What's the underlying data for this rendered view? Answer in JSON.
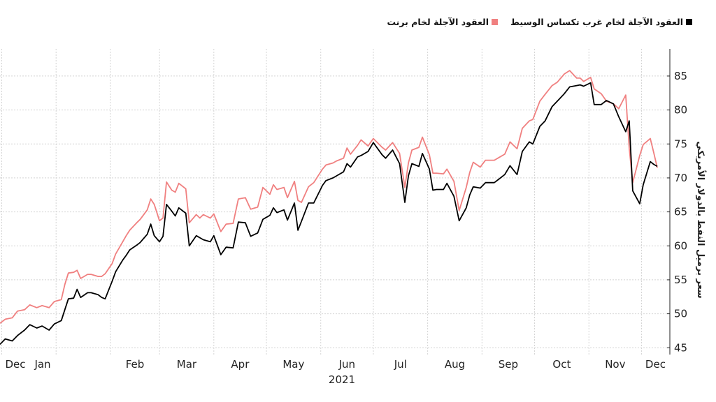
{
  "chart_data": {
    "type": "line",
    "title": "",
    "xlabel": "2021",
    "ylabel": "سعر برميل النفط بالدولار الأمريكي",
    "ylim": [
      44,
      89
    ],
    "y_ticks": [
      45,
      50,
      55,
      60,
      65,
      70,
      75,
      80,
      85
    ],
    "x_tick_labels": [
      "Dec",
      "Jan",
      "Feb",
      "Mar",
      "Apr",
      "May",
      "Jun",
      "Jul",
      "Aug",
      "Sep",
      "Oct",
      "Nov",
      "Dec"
    ],
    "x_ticks": [
      "2020-12-01",
      "2021-01-01",
      "2021-02-01",
      "2021-03-01",
      "2021-04-01",
      "2021-05-01",
      "2021-06-01",
      "2021-07-01",
      "2021-08-01",
      "2021-09-01",
      "2021-10-01",
      "2021-11-01",
      "2021-12-01"
    ],
    "x_range": [
      "2020-11-30",
      "2021-12-10"
    ],
    "year_label": "2021",
    "grid": true,
    "legend_position": "top-right",
    "series": [
      {
        "name": "العقود الآجلة لخام غرب تكساس الوسيط",
        "color": "#000000",
        "x": [
          "2020-11-30",
          "2020-12-03",
          "2020-12-07",
          "2020-12-10",
          "2020-12-14",
          "2020-12-17",
          "2020-12-21",
          "2020-12-24",
          "2020-12-28",
          "2020-12-31",
          "2021-01-04",
          "2021-01-06",
          "2021-01-08",
          "2021-01-11",
          "2021-01-13",
          "2021-01-15",
          "2021-01-19",
          "2021-01-21",
          "2021-01-25",
          "2021-01-27",
          "2021-01-29",
          "2021-02-02",
          "2021-02-04",
          "2021-02-08",
          "2021-02-10",
          "2021-02-12",
          "2021-02-16",
          "2021-02-18",
          "2021-02-22",
          "2021-02-24",
          "2021-02-26",
          "2021-03-01",
          "2021-03-03",
          "2021-03-05",
          "2021-03-08",
          "2021-03-10",
          "2021-03-12",
          "2021-03-16",
          "2021-03-18",
          "2021-03-22",
          "2021-03-24",
          "2021-03-26",
          "2021-03-30",
          "2021-04-01",
          "2021-04-05",
          "2021-04-08",
          "2021-04-12",
          "2021-04-15",
          "2021-04-19",
          "2021-04-22",
          "2021-04-26",
          "2021-04-29",
          "2021-05-03",
          "2021-05-05",
          "2021-05-07",
          "2021-05-11",
          "2021-05-13",
          "2021-05-17",
          "2021-05-19",
          "2021-05-21",
          "2021-05-25",
          "2021-05-28",
          "2021-06-02",
          "2021-06-04",
          "2021-06-08",
          "2021-06-10",
          "2021-06-14",
          "2021-06-16",
          "2021-06-18",
          "2021-06-22",
          "2021-06-24",
          "2021-06-28",
          "2021-07-01",
          "2021-07-06",
          "2021-07-08",
          "2021-07-12",
          "2021-07-14",
          "2021-07-16",
          "2021-07-19",
          "2021-07-21",
          "2021-07-23",
          "2021-07-27",
          "2021-07-29",
          "2021-08-02",
          "2021-08-04",
          "2021-08-06",
          "2021-08-10",
          "2021-08-12",
          "2021-08-16",
          "2021-08-19",
          "2021-08-23",
          "2021-08-25",
          "2021-08-27",
          "2021-08-31",
          "2021-09-03",
          "2021-09-08",
          "2021-09-10",
          "2021-09-14",
          "2021-09-17",
          "2021-09-21",
          "2021-09-24",
          "2021-09-28",
          "2021-09-30",
          "2021-10-04",
          "2021-10-07",
          "2021-10-11",
          "2021-10-14",
          "2021-10-18",
          "2021-10-21",
          "2021-10-25",
          "2021-10-27",
          "2021-10-29",
          "2021-11-02",
          "2021-11-04",
          "2021-11-08",
          "2021-11-11",
          "2021-11-15",
          "2021-11-18",
          "2021-11-22",
          "2021-11-24",
          "2021-11-26",
          "2021-11-30",
          "2021-12-02",
          "2021-12-06",
          "2021-12-08",
          "2021-12-10"
        ],
        "values": [
          45.5,
          46.3,
          46.0,
          46.8,
          47.6,
          48.4,
          47.9,
          48.2,
          47.6,
          48.5,
          49.0,
          50.6,
          52.2,
          52.3,
          53.6,
          52.4,
          53.1,
          53.1,
          52.8,
          52.4,
          52.2,
          54.8,
          56.2,
          57.9,
          58.6,
          59.4,
          60.1,
          60.5,
          61.7,
          63.2,
          61.5,
          60.6,
          61.4,
          66.1,
          65.1,
          64.4,
          65.6,
          64.8,
          60.0,
          61.5,
          61.2,
          60.9,
          60.6,
          61.5,
          58.7,
          59.8,
          59.7,
          63.5,
          63.4,
          61.4,
          61.9,
          63.9,
          64.5,
          65.6,
          64.9,
          65.3,
          63.8,
          66.3,
          62.3,
          63.6,
          66.3,
          66.3,
          68.9,
          69.6,
          70.0,
          70.3,
          70.9,
          72.1,
          71.6,
          73.1,
          73.3,
          73.9,
          75.2,
          73.4,
          72.9,
          74.1,
          73.1,
          72.1,
          66.4,
          70.3,
          72.1,
          71.7,
          73.6,
          71.3,
          68.2,
          68.3,
          68.3,
          69.2,
          67.3,
          63.7,
          65.6,
          67.5,
          68.7,
          68.5,
          69.3,
          69.3,
          69.7,
          70.5,
          71.8,
          70.5,
          73.9,
          75.3,
          75.0,
          77.6,
          78.4,
          80.5,
          81.3,
          82.4,
          83.4,
          83.6,
          83.7,
          83.5,
          84.0,
          80.8,
          80.8,
          81.4,
          80.9,
          79.0,
          76.8,
          78.4,
          68.1,
          66.2,
          69.0,
          72.4,
          72.0,
          71.7
        ]
      },
      {
        "name": "العقود الآجلة لخام برنت",
        "color": "#f08080",
        "x": [
          "2020-11-30",
          "2020-12-03",
          "2020-12-07",
          "2020-12-10",
          "2020-12-14",
          "2020-12-17",
          "2020-12-21",
          "2020-12-24",
          "2020-12-28",
          "2020-12-31",
          "2021-01-04",
          "2021-01-06",
          "2021-01-08",
          "2021-01-11",
          "2021-01-13",
          "2021-01-15",
          "2021-01-19",
          "2021-01-21",
          "2021-01-25",
          "2021-01-27",
          "2021-01-29",
          "2021-02-02",
          "2021-02-04",
          "2021-02-08",
          "2021-02-10",
          "2021-02-12",
          "2021-02-16",
          "2021-02-18",
          "2021-02-22",
          "2021-02-24",
          "2021-02-26",
          "2021-03-01",
          "2021-03-03",
          "2021-03-05",
          "2021-03-08",
          "2021-03-10",
          "2021-03-12",
          "2021-03-16",
          "2021-03-18",
          "2021-03-22",
          "2021-03-24",
          "2021-03-26",
          "2021-03-30",
          "2021-04-01",
          "2021-04-05",
          "2021-04-08",
          "2021-04-12",
          "2021-04-15",
          "2021-04-19",
          "2021-04-22",
          "2021-04-26",
          "2021-04-29",
          "2021-05-03",
          "2021-05-05",
          "2021-05-07",
          "2021-05-11",
          "2021-05-13",
          "2021-05-17",
          "2021-05-19",
          "2021-05-21",
          "2021-05-25",
          "2021-05-28",
          "2021-06-02",
          "2021-06-04",
          "2021-06-08",
          "2021-06-10",
          "2021-06-14",
          "2021-06-16",
          "2021-06-18",
          "2021-06-22",
          "2021-06-24",
          "2021-06-28",
          "2021-07-01",
          "2021-07-06",
          "2021-07-08",
          "2021-07-12",
          "2021-07-14",
          "2021-07-16",
          "2021-07-19",
          "2021-07-21",
          "2021-07-23",
          "2021-07-27",
          "2021-07-29",
          "2021-08-02",
          "2021-08-04",
          "2021-08-06",
          "2021-08-10",
          "2021-08-12",
          "2021-08-16",
          "2021-08-19",
          "2021-08-23",
          "2021-08-25",
          "2021-08-27",
          "2021-08-31",
          "2021-09-03",
          "2021-09-08",
          "2021-09-10",
          "2021-09-14",
          "2021-09-17",
          "2021-09-21",
          "2021-09-24",
          "2021-09-28",
          "2021-09-30",
          "2021-10-04",
          "2021-10-07",
          "2021-10-11",
          "2021-10-14",
          "2021-10-18",
          "2021-10-21",
          "2021-10-25",
          "2021-10-27",
          "2021-10-29",
          "2021-11-02",
          "2021-11-04",
          "2021-11-08",
          "2021-11-11",
          "2021-11-15",
          "2021-11-18",
          "2021-11-22",
          "2021-11-24",
          "2021-11-26",
          "2021-11-30",
          "2021-12-02",
          "2021-12-06",
          "2021-12-08",
          "2021-12-10"
        ],
        "values": [
          48.6,
          49.2,
          49.4,
          50.4,
          50.6,
          51.3,
          50.9,
          51.2,
          50.9,
          51.8,
          52.1,
          54.3,
          56.0,
          56.1,
          56.4,
          55.2,
          55.8,
          55.8,
          55.5,
          55.5,
          55.9,
          57.4,
          58.8,
          60.6,
          61.5,
          62.3,
          63.4,
          63.9,
          65.3,
          66.9,
          66.1,
          63.7,
          64.1,
          69.4,
          68.2,
          67.9,
          69.2,
          68.4,
          63.4,
          64.6,
          64.1,
          64.6,
          64.1,
          64.7,
          62.1,
          63.2,
          63.3,
          66.9,
          67.1,
          65.4,
          65.7,
          68.6,
          67.6,
          69.0,
          68.3,
          68.6,
          67.1,
          69.5,
          66.7,
          66.4,
          68.7,
          69.3,
          71.3,
          71.9,
          72.2,
          72.5,
          72.9,
          74.4,
          73.5,
          74.8,
          75.6,
          74.7,
          75.8,
          74.5,
          74.1,
          75.2,
          74.4,
          73.6,
          68.6,
          72.2,
          74.1,
          74.5,
          76.0,
          73.4,
          70.7,
          70.7,
          70.6,
          71.3,
          69.5,
          65.2,
          68.6,
          70.8,
          72.3,
          71.6,
          72.6,
          72.6,
          72.9,
          73.5,
          75.3,
          74.3,
          77.3,
          78.4,
          78.6,
          81.3,
          82.3,
          83.6,
          84.1,
          85.3,
          85.8,
          84.7,
          84.7,
          84.2,
          84.8,
          83.1,
          82.4,
          81.3,
          80.9,
          80.2,
          82.2,
          74.4,
          69.3,
          73.3,
          74.9,
          75.8,
          73.7,
          71.5
        ]
      }
    ]
  },
  "legend": {
    "wti_label": "العقود الآجلة لخام غرب تكساس الوسيط",
    "brent_label": "العقود الآجلة لخام برنت",
    "wti_color": "#000000",
    "brent_color": "#f08080"
  }
}
